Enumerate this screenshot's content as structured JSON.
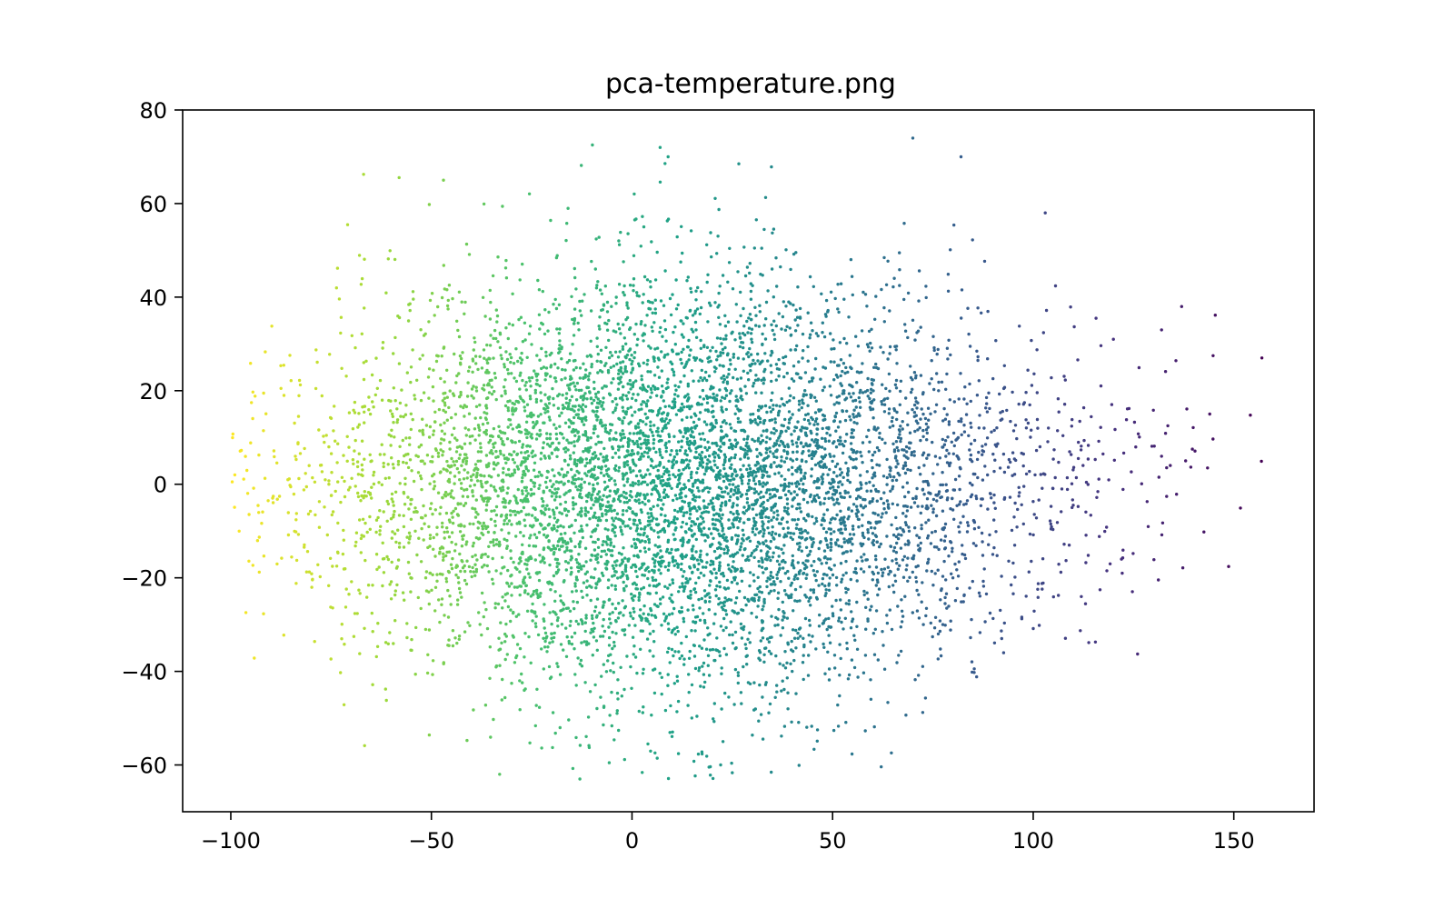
{
  "chart_data": {
    "type": "scatter",
    "title": "pca-temperature.png",
    "xlabel": "",
    "ylabel": "",
    "xlim": [
      -112,
      170
    ],
    "ylim": [
      -70,
      80
    ],
    "xticks": [
      -100,
      -50,
      0,
      50,
      100,
      150
    ],
    "xtick_labels": [
      "−100",
      "−50",
      "0",
      "50",
      "100",
      "150"
    ],
    "yticks": [
      -60,
      -40,
      -20,
      0,
      20,
      40,
      60,
      80
    ],
    "ytick_labels": [
      "−60",
      "−40",
      "−20",
      "0",
      "20",
      "40",
      "60",
      "80"
    ],
    "grid": false,
    "colormap": "viridis",
    "color_encoding": "point color goes from yellow-green at low x to dark purple at high x",
    "colormap_stops": [
      "#fde725",
      "#a0da39",
      "#4ac16d",
      "#1fa187",
      "#277f8e",
      "#365c8d",
      "#46327e",
      "#440154"
    ],
    "point_count_approx": 7000,
    "distribution": {
      "x_center": 10,
      "y_center": 0,
      "x_std": 45,
      "y_std": 24,
      "x_range": [
        -100,
        157
      ],
      "y_range": [
        -63,
        74
      ]
    },
    "outliers": [
      {
        "x": -99,
        "y": 2
      },
      {
        "x": 157,
        "y": 27
      },
      {
        "x": 144,
        "y": 15
      },
      {
        "x": 138,
        "y": 5
      },
      {
        "x": 137,
        "y": 38
      },
      {
        "x": 132,
        "y": 33
      },
      {
        "x": 132,
        "y": 6
      },
      {
        "x": 122,
        "y": -16
      },
      {
        "x": 112,
        "y": -24
      },
      {
        "x": 70,
        "y": 74
      },
      {
        "x": 82,
        "y": 70
      },
      {
        "x": 7,
        "y": 72
      },
      {
        "x": 9,
        "y": 70
      },
      {
        "x": 103,
        "y": 58
      },
      {
        "x": -13,
        "y": -63
      },
      {
        "x": -33,
        "y": -62
      },
      {
        "x": -47,
        "y": 65
      }
    ]
  }
}
